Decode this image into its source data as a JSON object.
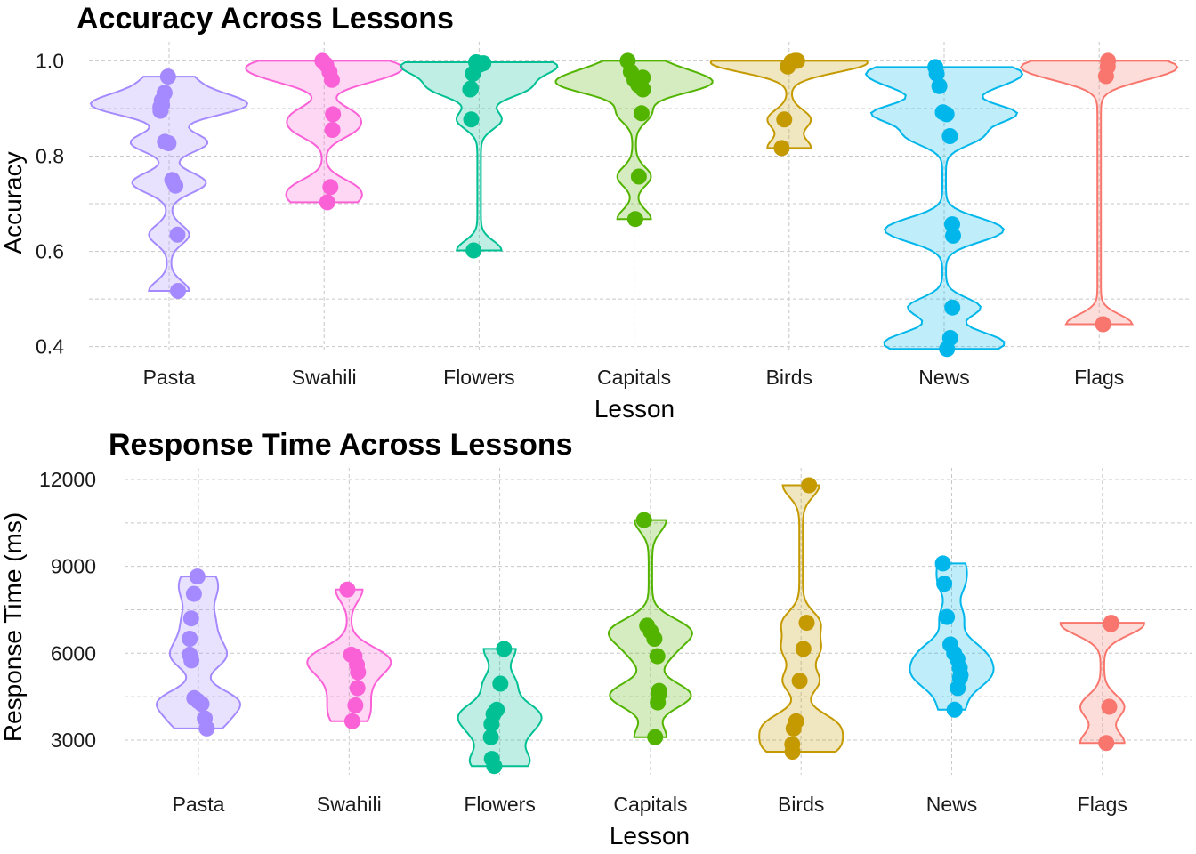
{
  "chart_data": [
    {
      "type": "violin",
      "title": "Accuracy Across Lessons",
      "xlabel": "Lesson",
      "ylabel": "Accuracy",
      "ylim": [
        0.39,
        1.04
      ],
      "yticks": [
        0.4,
        0.6,
        0.8,
        1.0
      ],
      "ytick_labels": [
        "0.4",
        "0.6",
        "0.8",
        "1.0"
      ],
      "grid": true,
      "legend": "none",
      "categories": [
        "Pasta",
        "Swahili",
        "Flowers",
        "Capitals",
        "Birds",
        "News",
        "Flags"
      ],
      "series": [
        {
          "color": "#A58AFF",
          "points": [
            0.967,
            0.933,
            0.917,
            0.903,
            0.895,
            0.907,
            0.83,
            0.827,
            0.75,
            0.738,
            0.635,
            0.517
          ]
        },
        {
          "color": "#FB61D7",
          "points": [
            1.0,
            0.992,
            0.977,
            0.96,
            0.888,
            0.855,
            0.735,
            0.703
          ]
        },
        {
          "color": "#00C094",
          "points": [
            0.995,
            0.992,
            0.997,
            0.973,
            0.942,
            0.94,
            0.877,
            0.602
          ]
        },
        {
          "color": "#53B400",
          "points": [
            1.0,
            0.977,
            0.96,
            0.95,
            0.945,
            0.965,
            0.94,
            0.89,
            0.757,
            0.668
          ]
        },
        {
          "color": "#C49A00",
          "points": [
            1.0,
            1.0,
            0.998,
            0.988,
            0.877,
            0.817
          ]
        },
        {
          "color": "#00B6EB",
          "points": [
            0.987,
            0.973,
            0.947,
            0.892,
            0.888,
            0.842,
            0.657,
            0.633,
            0.482,
            0.418,
            0.395
          ]
        },
        {
          "color": "#F8766D",
          "points": [
            1.0,
            0.988,
            0.968,
            0.447
          ]
        }
      ]
    },
    {
      "type": "violin",
      "title": "Response Time Across Lessons",
      "xlabel": "Lesson",
      "ylabel": "Response Time (ms)",
      "ylim": [
        1800,
        12400
      ],
      "yticks": [
        3000,
        6000,
        9000,
        12000
      ],
      "ytick_labels": [
        "3000",
        "6000",
        "9000",
        "12000"
      ],
      "grid": true,
      "legend": "none",
      "categories": [
        "Pasta",
        "Swahili",
        "Flowers",
        "Capitals",
        "Birds",
        "News",
        "Flags"
      ],
      "series": [
        {
          "color": "#A58AFF",
          "points": [
            8650,
            8050,
            7200,
            6500,
            5950,
            5750,
            4450,
            4350,
            4250,
            3750,
            3400
          ]
        },
        {
          "color": "#FB61D7",
          "points": [
            8200,
            5950,
            5900,
            5600,
            5350,
            4800,
            4200,
            3650
          ]
        },
        {
          "color": "#00C094",
          "points": [
            6150,
            4950,
            4050,
            3900,
            3550,
            3100,
            2350,
            2100
          ]
        },
        {
          "color": "#53B400",
          "points": [
            10600,
            6950,
            6750,
            6500,
            5900,
            4700,
            4600,
            4300,
            3100
          ]
        },
        {
          "color": "#C49A00",
          "points": [
            11800,
            7050,
            6150,
            5050,
            3650,
            3400,
            2850,
            2600
          ]
        },
        {
          "color": "#00B6EB",
          "points": [
            9100,
            8400,
            7250,
            6300,
            6000,
            5800,
            5500,
            5250,
            5150,
            4800,
            4050
          ]
        },
        {
          "color": "#F8766D",
          "points": [
            7050,
            7000,
            4150,
            2900
          ]
        }
      ]
    }
  ]
}
